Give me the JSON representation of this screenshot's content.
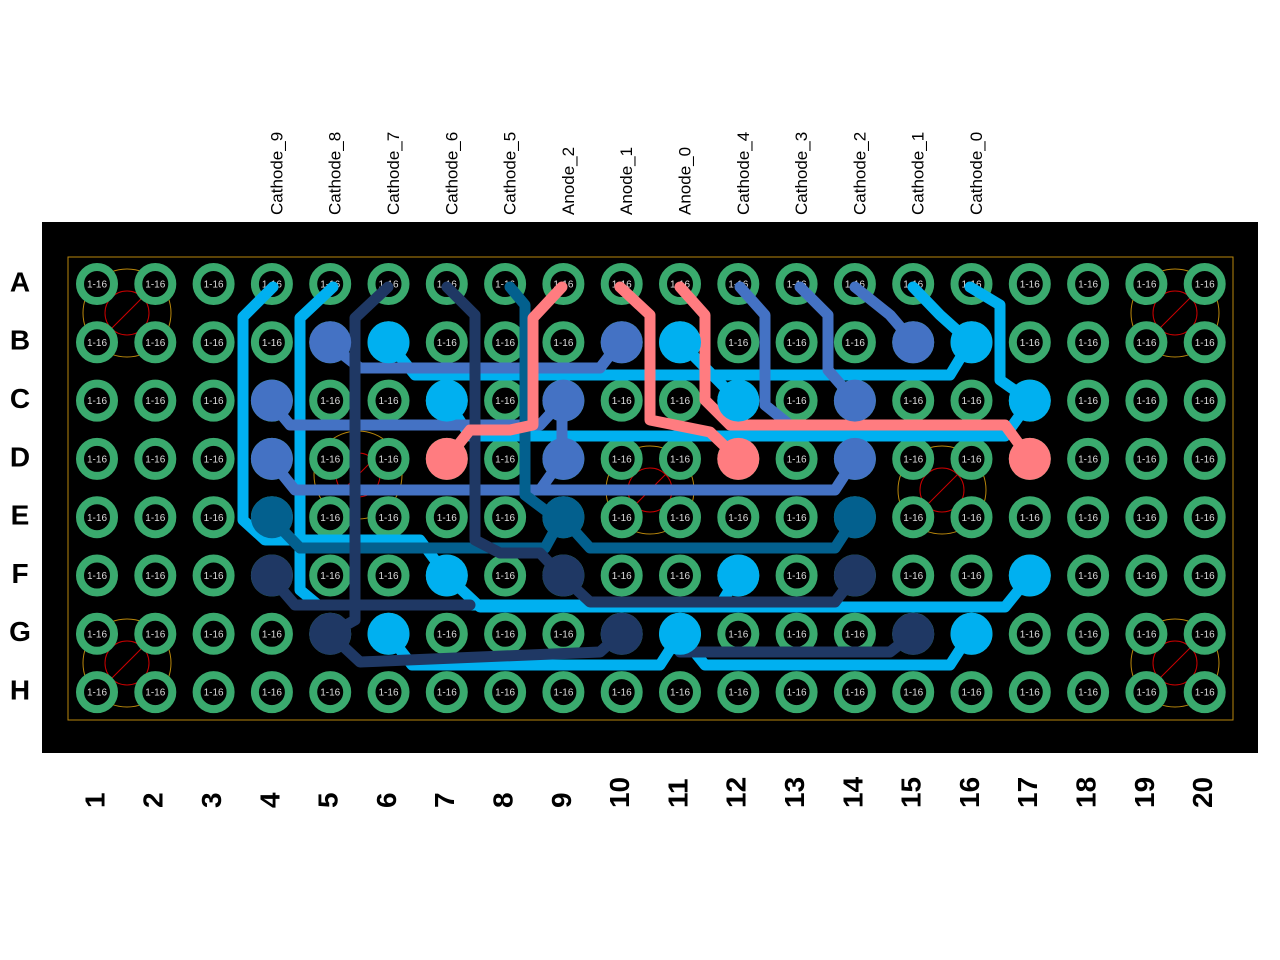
{
  "net_labels": [
    "Cathode_9",
    "Cathode_8",
    "Cathode_7",
    "Cathode_6",
    "Cathode_5",
    "Anode_2",
    "Anode_1",
    "Anode_0",
    "Cathode_4",
    "Cathode_3",
    "Cathode_2",
    "Cathode_1",
    "Cathode_0"
  ],
  "columns": [
    "1",
    "2",
    "3",
    "4",
    "5",
    "6",
    "7",
    "8",
    "9",
    "10",
    "11",
    "12",
    "13",
    "14",
    "15",
    "16",
    "17",
    "18",
    "19",
    "20"
  ],
  "rows": [
    "A",
    "B",
    "C",
    "D",
    "E",
    "F",
    "G",
    "H"
  ],
  "pad_label": "1-16"
}
